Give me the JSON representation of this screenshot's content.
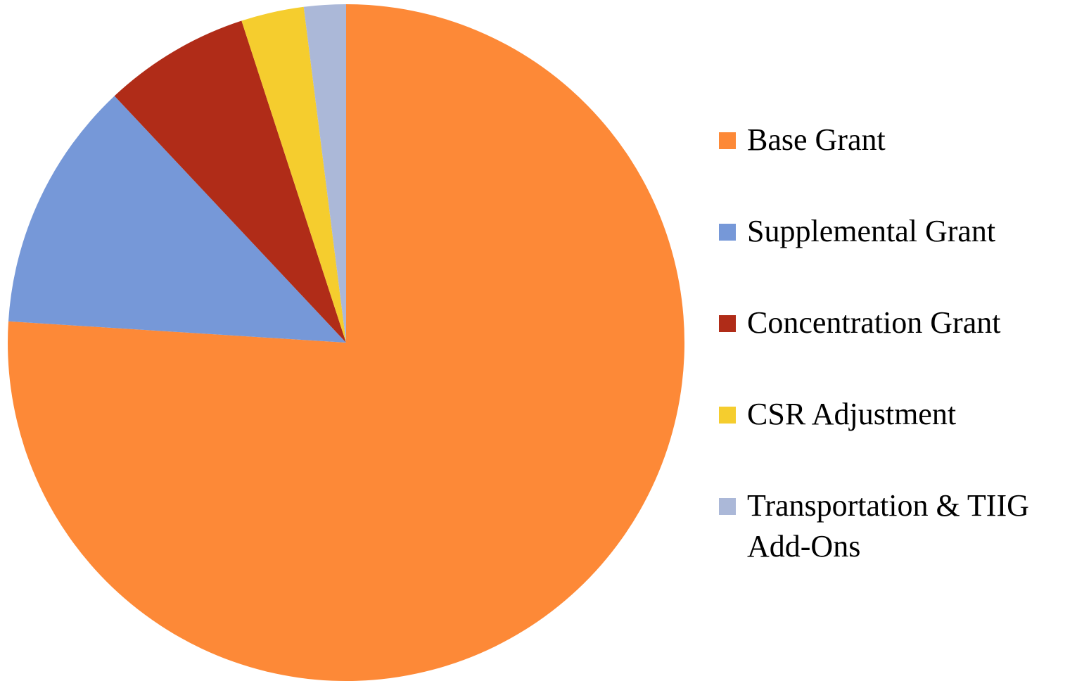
{
  "chart_data": {
    "type": "pie",
    "categories": [
      "Base Grant",
      "Supplemental Grant",
      "Concentration Grant",
      "CSR Adjustment",
      "Transportation & TIIG Add-Ons"
    ],
    "values": [
      76,
      12,
      7,
      3,
      2
    ],
    "colors": [
      "#fd8937",
      "#7698d8",
      "#b02c18",
      "#f5cd2e",
      "#abb8d8"
    ],
    "legend": "right"
  }
}
